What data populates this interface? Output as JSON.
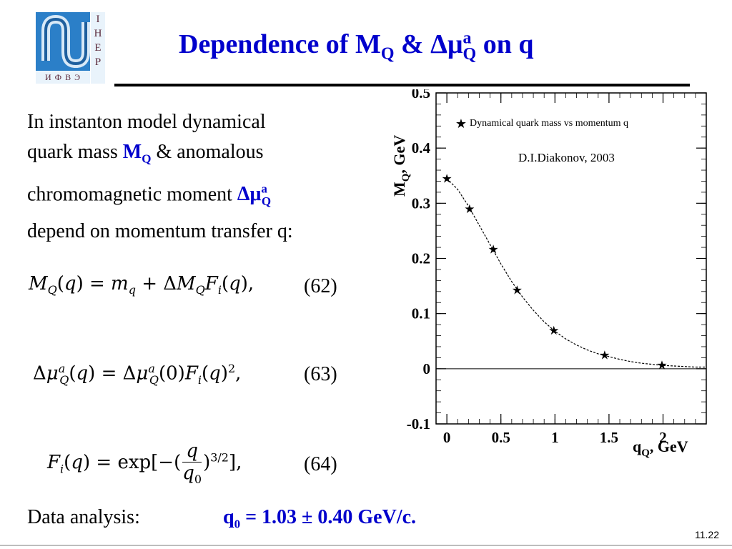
{
  "logo": {
    "right_letters": [
      "I",
      "Н",
      "Е",
      "Р"
    ],
    "bottom_text": "И Ф В Э"
  },
  "title": {
    "part1": "Dependence of M",
    "sub1": "Q",
    "part2": " & Δμ",
    "sup2": "a",
    "sub2": "Q",
    "part3": " on q"
  },
  "intro": {
    "line1": "In instanton model dynamical",
    "line2_a": "quark mass ",
    "line2_b": "M",
    "line2_b_sub": "Q",
    "line2_c": " & anomalous",
    "line3_a": "chromomagnetic moment ",
    "line3_b": "Δμ",
    "line3_b_sup": "a",
    "line3_b_sub": "Q",
    "line4": "depend on momentum transfer q:"
  },
  "equations": [
    {
      "number": "(62)"
    },
    {
      "number": "(63)"
    },
    {
      "number": "(64)"
    }
  ],
  "analysis": {
    "label": "Data analysis:",
    "value_a": "q",
    "value_sub": "0",
    "value_b": " = 1.03 ± 0.40 GeV/c."
  },
  "slide_number": "11.22",
  "chart_data": {
    "type": "scatter",
    "xlabel": "q",
    "xlabel_sub": "Q",
    "xlabel_rest": ", GeV",
    "ylabel": "M",
    "ylabel_sub": "Q",
    "ylabel_rest": ", GeV",
    "xlim": [
      -0.1,
      2.4
    ],
    "ylim": [
      -0.1,
      0.5
    ],
    "x_ticks": [
      0,
      0.5,
      1,
      1.5,
      2
    ],
    "x_tick_labels": [
      "0",
      "0.5",
      "1",
      "1.5",
      "2"
    ],
    "y_ticks": [
      -0.1,
      0,
      0.1,
      0.2,
      0.3,
      0.4,
      0.5
    ],
    "y_tick_labels": [
      "-0.1",
      "0",
      "0.1",
      "0.2",
      "0.3",
      "0.4",
      "0.5"
    ],
    "legend": "Dynamical quark mass vs momentum q",
    "legend_placement": "top-right",
    "annotation": "D.I.Diakonov, 2003",
    "series": [
      {
        "name": "Dynamical quark mass vs momentum q",
        "x": [
          0,
          0.21,
          0.43,
          0.65,
          0.99,
          1.46,
          1.99
        ],
        "y": [
          0.345,
          0.29,
          0.217,
          0.143,
          0.07,
          0.025,
          0.007
        ]
      }
    ],
    "fit_curve": {
      "x": [
        0,
        0.1,
        0.2,
        0.3,
        0.4,
        0.5,
        0.6,
        0.7,
        0.8,
        0.9,
        1.0,
        1.1,
        1.2,
        1.3,
        1.4,
        1.5,
        1.6,
        1.7,
        1.8,
        1.9,
        2.0,
        2.1,
        2.2,
        2.3,
        2.4
      ],
      "y": [
        0.345,
        0.325,
        0.295,
        0.26,
        0.225,
        0.19,
        0.158,
        0.13,
        0.106,
        0.085,
        0.068,
        0.054,
        0.043,
        0.034,
        0.027,
        0.022,
        0.017,
        0.013,
        0.01,
        0.008,
        0.006,
        0.005,
        0.004,
        0.003,
        0.003
      ]
    },
    "zero_line": true
  }
}
